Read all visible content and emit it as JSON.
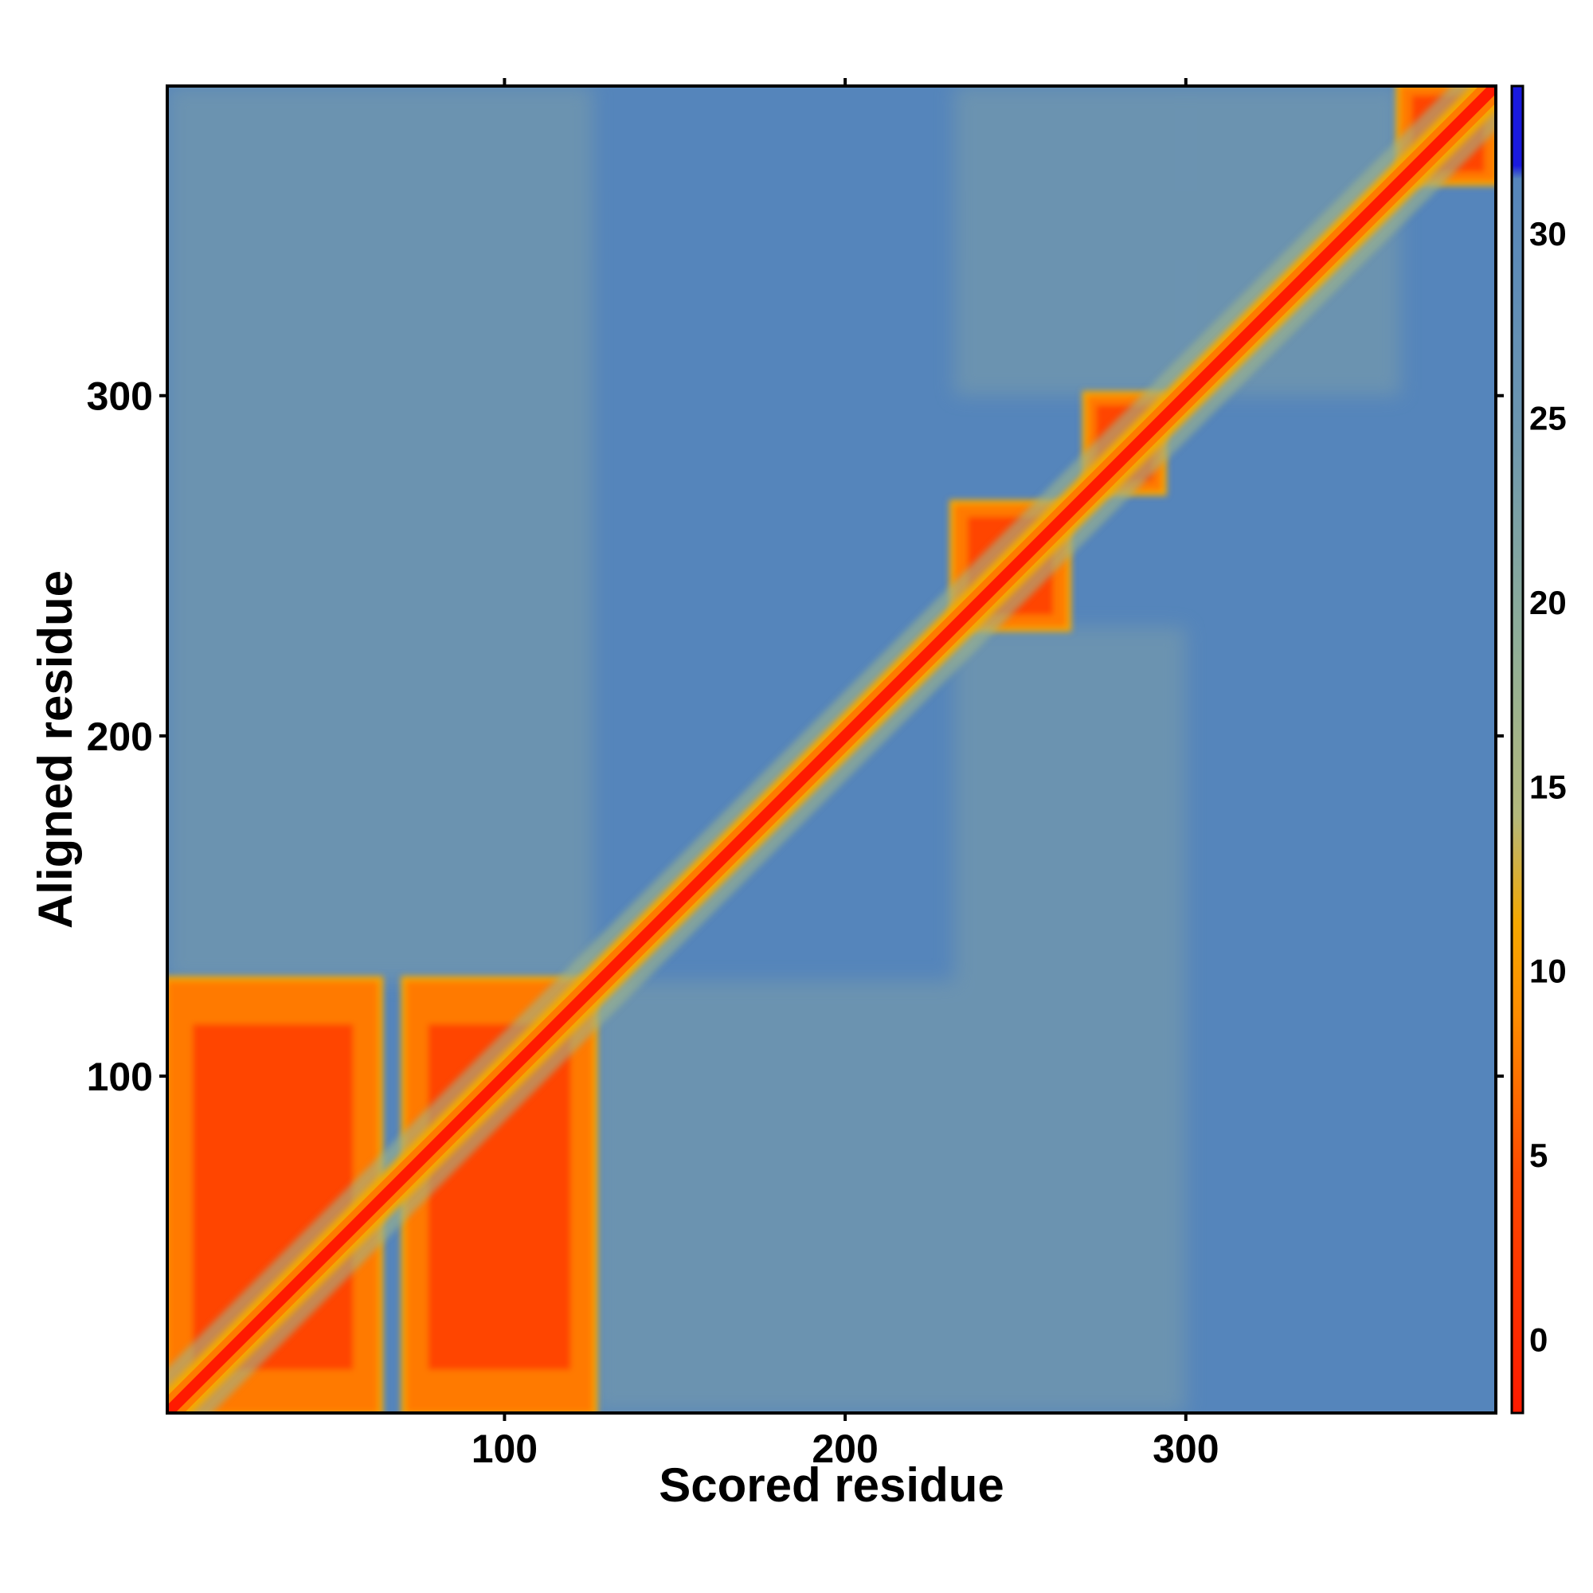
{
  "chart_data": {
    "type": "heatmap",
    "xlabel": "Scored residue",
    "ylabel": "Aligned residue",
    "xlim": [
      1,
      391
    ],
    "ylim": [
      1,
      391
    ],
    "x_ticks": [
      100,
      200,
      300
    ],
    "y_ticks": [
      100,
      200,
      300
    ],
    "colorbar": {
      "ticks": [
        0,
        5,
        10,
        15,
        20,
        25,
        30
      ],
      "range": [
        -2,
        34
      ],
      "colors": {
        "low": "#ff1a00",
        "mid_low": "#ff7a00",
        "mid": "#f5a800",
        "mid_high": "#9fb58a",
        "high": "#5585bb",
        "max": "#1a1adf"
      }
    },
    "description_values": {
      "diagonal": 0,
      "background": 28,
      "blocks": [
        {
          "x": [
            1,
            63
          ],
          "y": [
            1,
            128
          ],
          "value": 5
        },
        {
          "x": [
            71,
            126
          ],
          "y": [
            1,
            128
          ],
          "value": 5
        },
        {
          "x": [
            232,
            265
          ],
          "y": [
            232,
            268
          ],
          "value": 4
        },
        {
          "x": [
            271,
            293
          ],
          "y": [
            272,
            300
          ],
          "value": 4
        },
        {
          "x": [
            363,
            391
          ],
          "y": [
            363,
            391
          ],
          "value": 4
        }
      ]
    }
  }
}
